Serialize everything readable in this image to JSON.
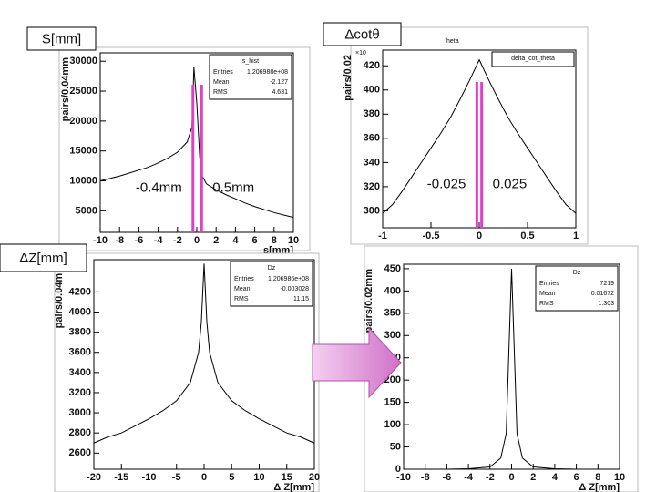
{
  "chart_data": [
    {
      "type": "line",
      "label": "S[mm]",
      "title": "s_hist",
      "y_label": "pairs/0.04mm",
      "x_label": "s[mm]",
      "x": [
        -10,
        -9,
        -8,
        -7,
        -6,
        -5,
        -4,
        -3,
        -2,
        -1,
        -0.5,
        -0.3,
        0,
        0.3,
        0.5,
        1,
        2,
        3,
        4,
        5,
        6,
        7,
        8,
        9,
        10
      ],
      "values": [
        10000,
        10400,
        10800,
        11300,
        11800,
        12300,
        13000,
        13800,
        14800,
        16500,
        19000,
        29000,
        23000,
        14000,
        11000,
        9500,
        8500,
        7700,
        7000,
        6300,
        5700,
        5200,
        4700,
        4300,
        3900
      ],
      "xlim": [
        -10,
        10
      ],
      "xticks": [
        -10,
        -8,
        -6,
        -4,
        -2,
        0,
        2,
        4,
        6,
        8,
        10
      ],
      "ylim": [
        1400,
        31400
      ],
      "yticks": [
        5000,
        10000,
        15000,
        20000,
        25000,
        30000
      ],
      "stats": [
        [
          "Entries",
          "1.206988e+08"
        ],
        [
          "Mean",
          "-2.127"
        ],
        [
          "RMS",
          "4.631"
        ]
      ],
      "cuts": [
        {
          "value": -0.4,
          "label": "-0.4mm"
        },
        {
          "value": 0.5,
          "label": "0.5mm"
        }
      ],
      "color": "#000000",
      "cut_color": "#e040c8"
    },
    {
      "type": "line",
      "label": "Δcotθ",
      "title": "delta_cot_theta",
      "y_label": "pairs/0.02",
      "y_exponent": "×10",
      "header": "heta",
      "x": [
        -1,
        -0.9,
        -0.8,
        -0.7,
        -0.6,
        -0.5,
        -0.4,
        -0.3,
        -0.2,
        -0.1,
        0,
        0.1,
        0.2,
        0.3,
        0.4,
        0.5,
        0.6,
        0.7,
        0.8,
        0.9,
        1
      ],
      "values": [
        298,
        305,
        316,
        328,
        340,
        352,
        364,
        377,
        392,
        408,
        425,
        408,
        392,
        377,
        364,
        352,
        340,
        328,
        316,
        305,
        298
      ],
      "xlim": [
        -1,
        1
      ],
      "xticks": [
        -1,
        -0.5,
        0,
        0.5,
        1
      ],
      "ylim": [
        286,
        433
      ],
      "yticks": [
        300,
        320,
        340,
        360,
        380,
        400,
        420
      ],
      "cuts": [
        {
          "value": -0.025,
          "label": "-0.025"
        },
        {
          "value": 0.025,
          "label": "0.025"
        }
      ],
      "color": "#000000",
      "cut_color": "#e040c8"
    },
    {
      "type": "line",
      "label": "ΔZ[mm]",
      "title": "Dz",
      "y_label": "pairs/0.04mm",
      "x_label": "Δ Z[mm]",
      "x": [
        -20,
        -17.5,
        -15,
        -12.5,
        -10,
        -7.5,
        -5,
        -2.5,
        -1,
        -0.5,
        0,
        0.5,
        1,
        2.5,
        5,
        7.5,
        10,
        12.5,
        15,
        17.5,
        20
      ],
      "values": [
        2700,
        2760,
        2800,
        2870,
        2940,
        3020,
        3120,
        3300,
        3600,
        3900,
        4480,
        3900,
        3600,
        3300,
        3120,
        3020,
        2940,
        2870,
        2800,
        2760,
        2700
      ],
      "xlim": [
        -20,
        20
      ],
      "xticks": [
        -20,
        -15,
        -10,
        -5,
        0,
        5,
        10,
        15,
        20
      ],
      "ylim": [
        2440,
        4520
      ],
      "yticks": [
        2600,
        2800,
        3000,
        3200,
        3400,
        3600,
        3800,
        4000,
        4200
      ],
      "stats": [
        [
          "Entries",
          "1.206986e+08"
        ],
        [
          "Mean",
          "-0.003028"
        ],
        [
          "RMS",
          "11.15"
        ]
      ],
      "color": "#000000"
    },
    {
      "type": "line",
      "title": "Dz",
      "y_label": "pairs/0.02mm",
      "x_label": "Δ Z[mm]",
      "x": [
        -10,
        -6,
        -4,
        -2,
        -1,
        -0.5,
        0,
        0.5,
        1,
        2,
        4,
        6,
        10
      ],
      "values": [
        0,
        0,
        1,
        5,
        25,
        80,
        450,
        80,
        25,
        5,
        1,
        0,
        0
      ],
      "xlim": [
        -10,
        10
      ],
      "xticks": [
        -10,
        -8,
        -6,
        -4,
        -2,
        0,
        2,
        4,
        6,
        8,
        10
      ],
      "ylim": [
        0,
        460
      ],
      "yticks": [
        0,
        50,
        100,
        150,
        200,
        250,
        300,
        350,
        400,
        450
      ],
      "stats": [
        [
          "Entries",
          "7219"
        ],
        [
          "Mean",
          "0.01672"
        ],
        [
          "RMS",
          "1.303"
        ]
      ],
      "color": "#000000"
    }
  ]
}
